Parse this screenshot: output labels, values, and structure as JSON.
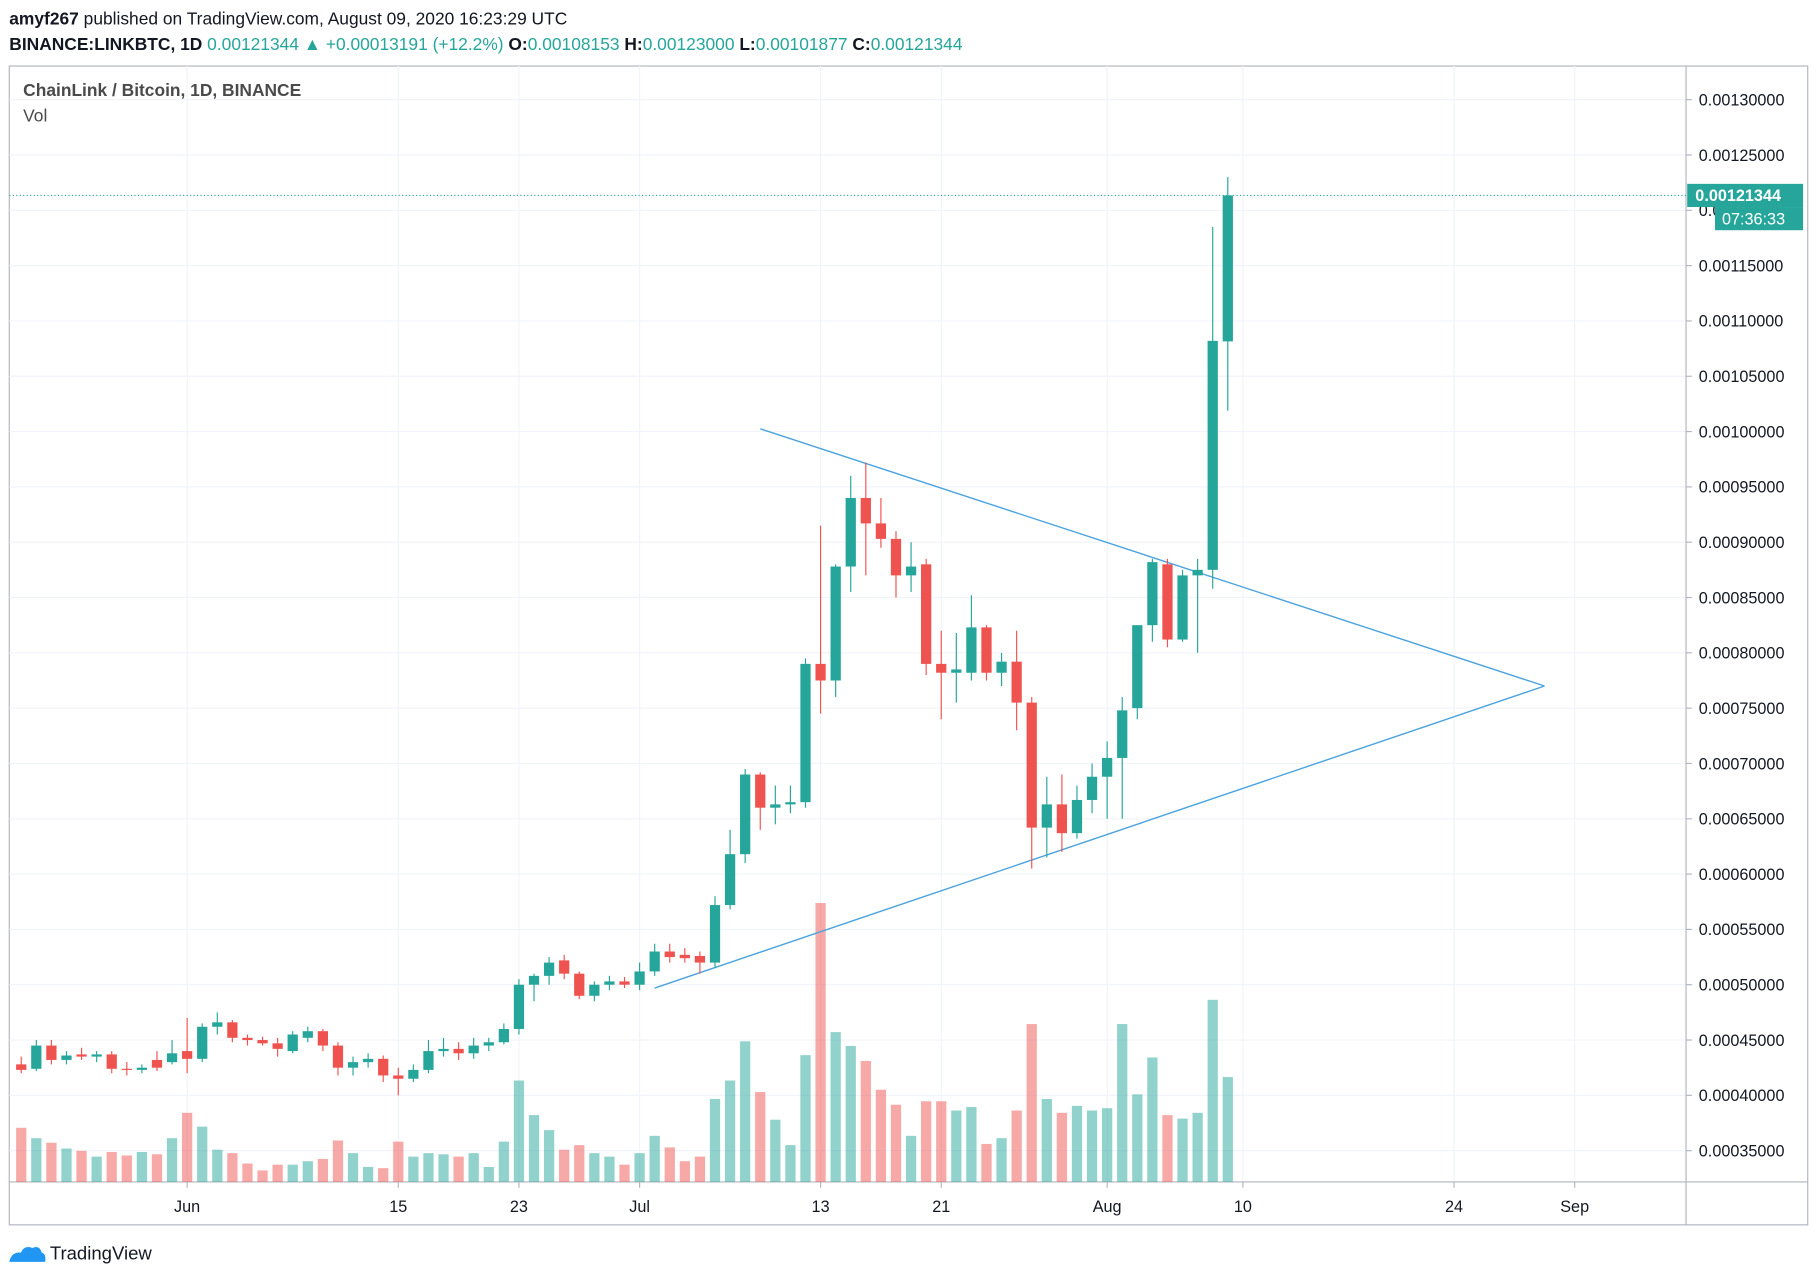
{
  "header": {
    "author": "amyf267",
    "published": "published on TradingView.com, August 09, 2020 16:23:29 UTC",
    "symbol": "BINANCE:LINKBTC, 1D",
    "last": "0.00121344",
    "arrow": "▲",
    "change": "+0.00013191 (+12.2%)",
    "ohlc": [
      {
        "label": "O:",
        "value": "0.00108153"
      },
      {
        "label": "H:",
        "value": "0.00123000"
      },
      {
        "label": "L:",
        "value": "0.00101877"
      },
      {
        "label": "C:",
        "value": "0.00121344"
      }
    ]
  },
  "chart_data": {
    "type": "candlestick",
    "title": "ChainLink / Bitcoin, 1D, BINANCE",
    "volume_label": "Vol",
    "x": [
      "2020-05-21",
      "2020-05-22",
      "2020-05-23",
      "2020-05-24",
      "2020-05-25",
      "2020-05-26",
      "2020-05-27",
      "2020-05-28",
      "2020-05-29",
      "2020-05-30",
      "2020-05-31",
      "2020-06-01",
      "2020-06-02",
      "2020-06-03",
      "2020-06-04",
      "2020-06-05",
      "2020-06-06",
      "2020-06-07",
      "2020-06-08",
      "2020-06-09",
      "2020-06-10",
      "2020-06-11",
      "2020-06-12",
      "2020-06-13",
      "2020-06-14",
      "2020-06-15",
      "2020-06-16",
      "2020-06-17",
      "2020-06-18",
      "2020-06-19",
      "2020-06-20",
      "2020-06-21",
      "2020-06-22",
      "2020-06-23",
      "2020-06-24",
      "2020-06-25",
      "2020-06-26",
      "2020-06-27",
      "2020-06-28",
      "2020-06-29",
      "2020-06-30",
      "2020-07-01",
      "2020-07-02",
      "2020-07-03",
      "2020-07-04",
      "2020-07-05",
      "2020-07-06",
      "2020-07-07",
      "2020-07-08",
      "2020-07-09",
      "2020-07-10",
      "2020-07-11",
      "2020-07-12",
      "2020-07-13",
      "2020-07-14",
      "2020-07-15",
      "2020-07-16",
      "2020-07-17",
      "2020-07-18",
      "2020-07-19",
      "2020-07-20",
      "2020-07-21",
      "2020-07-22",
      "2020-07-23",
      "2020-07-24",
      "2020-07-25",
      "2020-07-26",
      "2020-07-27",
      "2020-07-28",
      "2020-07-29",
      "2020-07-30",
      "2020-07-31",
      "2020-08-01",
      "2020-08-02",
      "2020-08-03",
      "2020-08-04",
      "2020-08-05",
      "2020-08-06",
      "2020-08-07",
      "2020-08-08",
      "2020-08-09"
    ],
    "open": [
      0.000428,
      0.000424,
      0.000445,
      0.000432,
      0.000437,
      0.000435,
      0.000437,
      0.000424,
      0.000423,
      0.000432,
      0.00043,
      0.00044,
      0.000433,
      0.000462,
      0.000466,
      0.000452,
      0.00045,
      0.000447,
      0.00044,
      0.000452,
      0.000458,
      0.000445,
      0.000425,
      0.00043,
      0.000433,
      0.000418,
      0.000415,
      0.000423,
      0.00044,
      0.000442,
      0.000438,
      0.000445,
      0.000448,
      0.00046,
      0.0005,
      0.000508,
      0.000522,
      0.00051,
      0.00049,
      0.0005,
      0.000503,
      0.0005,
      0.000512,
      0.00053,
      0.000527,
      0.000526,
      0.00052,
      0.000572,
      0.000618,
      0.00069,
      0.00066,
      0.000663,
      0.000665,
      0.00079,
      0.000775,
      0.000878,
      0.00094,
      0.000917,
      0.000903,
      0.00087,
      0.00088,
      0.00079,
      0.000782,
      0.000782,
      0.000823,
      0.000782,
      0.000792,
      0.000755,
      0.000642,
      0.000663,
      0.000637,
      0.000667,
      0.000688,
      0.000705,
      0.00075,
      0.000825,
      0.00088,
      0.000812,
      0.00087,
      0.000875,
      0.00108153
    ],
    "high": [
      0.000435,
      0.00045,
      0.00045,
      0.00044,
      0.000443,
      0.00044,
      0.00044,
      0.00043,
      0.000428,
      0.00044,
      0.00045,
      0.00047,
      0.000465,
      0.000475,
      0.000468,
      0.000455,
      0.000453,
      0.000452,
      0.000458,
      0.000462,
      0.00046,
      0.000448,
      0.000435,
      0.000438,
      0.000436,
      0.000425,
      0.000428,
      0.00045,
      0.000452,
      0.000448,
      0.000452,
      0.000452,
      0.000465,
      0.000505,
      0.00051,
      0.000525,
      0.000527,
      0.000512,
      0.000503,
      0.000508,
      0.000507,
      0.00052,
      0.000537,
      0.000537,
      0.000533,
      0.00053,
      0.00058,
      0.00064,
      0.000695,
      0.000692,
      0.00068,
      0.00068,
      0.000795,
      0.000915,
      0.00088,
      0.00096,
      0.000972,
      0.00094,
      0.00091,
      0.0009,
      0.000885,
      0.00082,
      0.000818,
      0.000852,
      0.000825,
      0.0008,
      0.00082,
      0.00076,
      0.000688,
      0.00069,
      0.00068,
      0.0007,
      0.00072,
      0.00076,
      0.000825,
      0.000885,
      0.000885,
      0.000875,
      0.000885,
      0.001185,
      0.00123
    ],
    "low": [
      0.00042,
      0.000422,
      0.000428,
      0.000428,
      0.000432,
      0.00043,
      0.00042,
      0.000418,
      0.00042,
      0.000422,
      0.000428,
      0.00042,
      0.00043,
      0.000455,
      0.000448,
      0.000445,
      0.000445,
      0.000435,
      0.000438,
      0.000448,
      0.00044,
      0.000418,
      0.000418,
      0.000425,
      0.000412,
      0.0004,
      0.000412,
      0.00042,
      0.000435,
      0.000432,
      0.000433,
      0.00044,
      0.000446,
      0.000455,
      0.000485,
      0.0005,
      0.000505,
      0.000487,
      0.000485,
      0.000495,
      0.000497,
      0.000495,
      0.000508,
      0.00052,
      0.00052,
      0.00051,
      0.000515,
      0.000568,
      0.00061,
      0.00064,
      0.000645,
      0.000655,
      0.00066,
      0.000745,
      0.00076,
      0.000855,
      0.00087,
      0.000895,
      0.00085,
      0.000855,
      0.00078,
      0.00074,
      0.000755,
      0.000775,
      0.000775,
      0.00077,
      0.00073,
      0.000605,
      0.000615,
      0.00062,
      0.000632,
      0.000655,
      0.00065,
      0.00065,
      0.00074,
      0.00081,
      0.000805,
      0.00081,
      0.0008,
      0.000858,
      0.00101877
    ],
    "close": [
      0.000423,
      0.000445,
      0.000432,
      0.000436,
      0.000435,
      0.000437,
      0.000424,
      0.000423,
      0.000425,
      0.000425,
      0.000438,
      0.000433,
      0.000462,
      0.000466,
      0.000452,
      0.00045,
      0.000447,
      0.000442,
      0.000455,
      0.000458,
      0.000445,
      0.000425,
      0.00043,
      0.000433,
      0.000418,
      0.000415,
      0.000423,
      0.00044,
      0.000442,
      0.000438,
      0.000445,
      0.000448,
      0.00046,
      0.0005,
      0.000508,
      0.00052,
      0.00051,
      0.00049,
      0.0005,
      0.000503,
      0.0005,
      0.000512,
      0.00053,
      0.000525,
      0.000524,
      0.00052,
      0.000572,
      0.000618,
      0.00069,
      0.00066,
      0.000663,
      0.000665,
      0.00079,
      0.000775,
      0.000878,
      0.00094,
      0.000917,
      0.000903,
      0.00087,
      0.000878,
      0.00079,
      0.000782,
      0.000785,
      0.000823,
      0.000782,
      0.000792,
      0.000755,
      0.000642,
      0.000663,
      0.000637,
      0.000667,
      0.000688,
      0.000705,
      0.000748,
      0.000825,
      0.000882,
      0.000812,
      0.00087,
      0.000875,
      0.001082,
      0.00121344
    ],
    "volume": [
      47,
      38,
      34,
      29,
      27,
      22,
      26,
      23,
      26,
      24,
      38,
      60,
      48,
      28,
      25,
      16,
      10,
      15,
      15,
      18,
      20,
      36,
      25,
      13,
      12,
      35,
      22,
      25,
      24,
      22,
      25,
      13,
      35,
      88,
      58,
      45,
      28,
      32,
      25,
      22,
      15,
      25,
      40,
      30,
      18,
      22,
      72,
      88,
      122,
      78,
      54,
      32,
      110,
      242,
      130,
      118,
      105,
      80,
      67,
      40,
      70,
      70,
      62,
      65,
      33,
      38,
      62,
      137,
      72,
      60,
      66,
      62,
      64,
      137,
      76,
      108,
      58,
      55,
      60,
      158,
      91
    ],
    "up_color": "#26a69a",
    "down_color": "#ef5350",
    "xlim": [
      "2020-05-20",
      "2020-09-08"
    ],
    "xticks": [
      {
        "value": "2020-06-01",
        "label": "Jun"
      },
      {
        "value": "2020-06-15",
        "label": "15"
      },
      {
        "value": "2020-06-23",
        "label": "23"
      },
      {
        "value": "2020-07-01",
        "label": "Jul"
      },
      {
        "value": "2020-07-13",
        "label": "13"
      },
      {
        "value": "2020-07-21",
        "label": "21"
      },
      {
        "value": "2020-08-01",
        "label": "Aug"
      },
      {
        "value": "2020-08-10",
        "label": "10"
      },
      {
        "value": "2020-08-24",
        "label": "24"
      },
      {
        "value": "2020-09-01",
        "label": "Sep"
      }
    ],
    "ylim": [
      0.0003217,
      0.0013304
    ],
    "yticks": [
      {
        "value": 0.00035,
        "label": "0.00035000"
      },
      {
        "value": 0.0004,
        "label": "0.00040000"
      },
      {
        "value": 0.00045,
        "label": "0.00045000"
      },
      {
        "value": 0.0005,
        "label": "0.00050000"
      },
      {
        "value": 0.00055,
        "label": "0.00055000"
      },
      {
        "value": 0.0006,
        "label": "0.00060000"
      },
      {
        "value": 0.00065,
        "label": "0.00065000"
      },
      {
        "value": 0.0007,
        "label": "0.00070000"
      },
      {
        "value": 0.00075,
        "label": "0.00075000"
      },
      {
        "value": 0.0008,
        "label": "0.00080000"
      },
      {
        "value": 0.00085,
        "label": "0.00085000"
      },
      {
        "value": 0.0009,
        "label": "0.00090000"
      },
      {
        "value": 0.00095,
        "label": "0.00095000"
      },
      {
        "value": 0.001,
        "label": "0.00100000"
      },
      {
        "value": 0.00105,
        "label": "0.00105000"
      },
      {
        "value": 0.0011,
        "label": "0.00110000"
      },
      {
        "value": 0.00115,
        "label": "0.00115000"
      },
      {
        "value": 0.0012,
        "label": "0.00120000"
      },
      {
        "value": 0.00125,
        "label": "0.00125000"
      },
      {
        "value": 0.0013,
        "label": "0.00130000"
      }
    ],
    "grid": true,
    "price_marker": {
      "value": 0.00121344,
      "label": "0.00121344"
    },
    "countdown": "07:36:33",
    "trendlines": [
      {
        "color": "#4aa3df",
        "points": [
          [
            "2020-07-09",
            0.0010025
          ],
          [
            "2020-08-30",
            0.00077
          ]
        ]
      },
      {
        "color": "#4aa3df",
        "points": [
          [
            "2020-07-02",
            0.000497
          ],
          [
            "2020-08-30",
            0.00077
          ]
        ]
      }
    ]
  },
  "footer": {
    "brand": "TradingView"
  }
}
